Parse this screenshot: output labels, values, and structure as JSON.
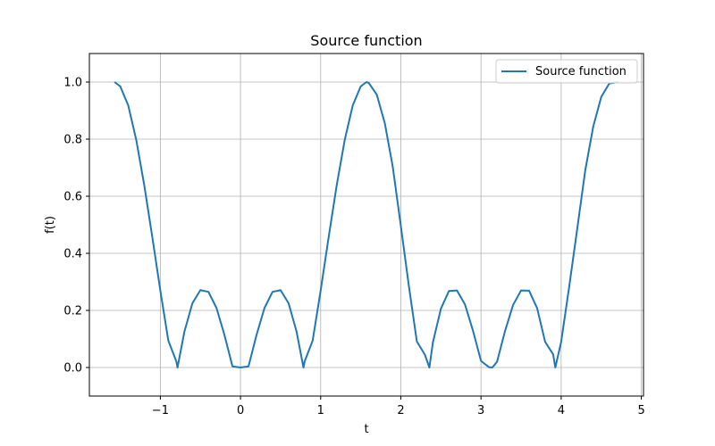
{
  "chart_data": {
    "type": "line",
    "title": "Source function",
    "xlabel": "t",
    "ylabel": "f(t)",
    "xlim": [
      -1.885,
      5.027
    ],
    "ylim": [
      -0.1,
      1.1
    ],
    "xticks": [
      -1,
      0,
      1,
      2,
      3,
      4,
      5
    ],
    "yticks": [
      0.0,
      0.2,
      0.4,
      0.6,
      0.8,
      1.0
    ],
    "xtick_labels": [
      "−1",
      "0",
      "1",
      "2",
      "3",
      "4",
      "5"
    ],
    "ytick_labels": [
      "0.0",
      "0.2",
      "0.4",
      "0.6",
      "0.8",
      "1.0"
    ],
    "grid": true,
    "legend_position": "top-right",
    "colors": {
      "line": "#1f77b4",
      "grid": "#b0b0b0",
      "axes": "#000000",
      "legend_border": "#cccccc"
    },
    "series": [
      {
        "name": "Source function",
        "x": [
          -1.5708,
          -1.5,
          -1.4,
          -1.3,
          -1.2,
          -1.1,
          -1.0,
          -0.9,
          -0.8,
          -0.7854,
          -0.7,
          -0.6,
          -0.5,
          -0.4,
          -0.3,
          -0.2,
          -0.1,
          0.0,
          0.1,
          0.2,
          0.3,
          0.4,
          0.5,
          0.6,
          0.7,
          0.7854,
          0.8,
          0.9,
          1.0,
          1.1,
          1.2,
          1.3,
          1.4,
          1.5,
          1.5708,
          1.6,
          1.7,
          1.8,
          1.9,
          2.0,
          2.1,
          2.2,
          2.3,
          2.3562,
          2.4,
          2.5,
          2.6,
          2.7,
          2.8,
          2.9,
          3.0,
          3.1,
          3.1416,
          3.2,
          3.3,
          3.4,
          3.5,
          3.6,
          3.7,
          3.8,
          3.9,
          3.927,
          4.0,
          4.1,
          4.2,
          4.3,
          4.4,
          4.5,
          4.6,
          4.7124
        ],
        "y": [
          1.0,
          0.985,
          0.918,
          0.797,
          0.638,
          0.457,
          0.27,
          0.094,
          0.021,
          0.0,
          0.125,
          0.225,
          0.271,
          0.265,
          0.209,
          0.114,
          0.004,
          0.0,
          0.004,
          0.114,
          0.209,
          0.265,
          0.271,
          0.225,
          0.125,
          0.0,
          0.021,
          0.094,
          0.27,
          0.457,
          0.638,
          0.797,
          0.918,
          0.985,
          1.0,
          0.997,
          0.956,
          0.856,
          0.702,
          0.496,
          0.286,
          0.091,
          0.045,
          0.0,
          0.088,
          0.206,
          0.268,
          0.27,
          0.221,
          0.129,
          0.023,
          0.001,
          0.0,
          0.02,
          0.128,
          0.219,
          0.27,
          0.269,
          0.208,
          0.09,
          0.046,
          0.0,
          0.09,
          0.283,
          0.485,
          0.69,
          0.844,
          0.948,
          0.995,
          1.0
        ]
      }
    ]
  }
}
